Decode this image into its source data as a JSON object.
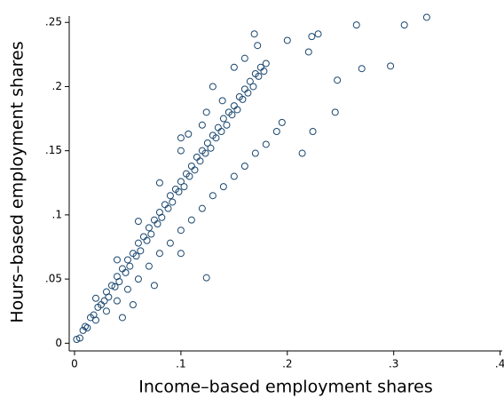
{
  "chart_data": {
    "type": "scatter",
    "x_label": "Income–based employment shares",
    "y_label": "Hours–based employment shares",
    "color": "#1a476f",
    "x": [
      0.002,
      0.005,
      0.008,
      0.01,
      0.012,
      0.015,
      0.018,
      0.02,
      0.022,
      0.025,
      0.028,
      0.03,
      0.032,
      0.035,
      0.038,
      0.04,
      0.042,
      0.045,
      0.048,
      0.05,
      0.052,
      0.055,
      0.058,
      0.06,
      0.062,
      0.065,
      0.068,
      0.07,
      0.072,
      0.075,
      0.078,
      0.08,
      0.082,
      0.085,
      0.088,
      0.09,
      0.092,
      0.095,
      0.098,
      0.1,
      0.103,
      0.105,
      0.108,
      0.11,
      0.113,
      0.115,
      0.118,
      0.12,
      0.123,
      0.125,
      0.128,
      0.13,
      0.133,
      0.135,
      0.138,
      0.14,
      0.143,
      0.145,
      0.148,
      0.15,
      0.153,
      0.155,
      0.158,
      0.16,
      0.163,
      0.165,
      0.168,
      0.17,
      0.173,
      0.175,
      0.178,
      0.18,
      0.03,
      0.04,
      0.05,
      0.06,
      0.07,
      0.08,
      0.09,
      0.1,
      0.11,
      0.12,
      0.13,
      0.14,
      0.15,
      0.16,
      0.17,
      0.18,
      0.19,
      0.195,
      0.055,
      0.075,
      0.045,
      0.1,
      0.02,
      0.04,
      0.06,
      0.08,
      0.1,
      0.12,
      0.13,
      0.15,
      0.16,
      0.1,
      0.265,
      0.31,
      0.331,
      0.297,
      0.27,
      0.247,
      0.245,
      0.124,
      0.169,
      0.172,
      0.223,
      0.229,
      0.2,
      0.22,
      0.224,
      0.214,
      0.107,
      0.124,
      0.139
    ],
    "y": [
      0.003,
      0.004,
      0.01,
      0.013,
      0.012,
      0.02,
      0.022,
      0.018,
      0.028,
      0.03,
      0.033,
      0.04,
      0.036,
      0.045,
      0.044,
      0.052,
      0.048,
      0.058,
      0.055,
      0.065,
      0.06,
      0.07,
      0.068,
      0.078,
      0.072,
      0.083,
      0.08,
      0.09,
      0.085,
      0.096,
      0.093,
      0.102,
      0.098,
      0.108,
      0.105,
      0.115,
      0.11,
      0.12,
      0.118,
      0.126,
      0.122,
      0.132,
      0.13,
      0.138,
      0.135,
      0.145,
      0.142,
      0.15,
      0.148,
      0.156,
      0.152,
      0.162,
      0.16,
      0.168,
      0.165,
      0.175,
      0.17,
      0.18,
      0.178,
      0.185,
      0.182,
      0.192,
      0.19,
      0.198,
      0.195,
      0.204,
      0.2,
      0.21,
      0.208,
      0.215,
      0.212,
      0.218,
      0.025,
      0.033,
      0.042,
      0.05,
      0.06,
      0.07,
      0.078,
      0.088,
      0.096,
      0.105,
      0.115,
      0.122,
      0.13,
      0.138,
      0.148,
      0.155,
      0.165,
      0.172,
      0.03,
      0.045,
      0.02,
      0.07,
      0.035,
      0.065,
      0.095,
      0.125,
      0.15,
      0.17,
      0.2,
      0.215,
      0.222,
      0.16,
      0.248,
      0.248,
      0.254,
      0.216,
      0.214,
      0.205,
      0.18,
      0.051,
      0.241,
      0.232,
      0.239,
      0.241,
      0.236,
      0.227,
      0.165,
      0.148,
      0.163,
      0.18,
      0.189
    ],
    "xlim": [
      -0.005,
      0.402
    ],
    "ylim": [
      -0.006,
      0.255
    ],
    "xticks": [
      0,
      {
        "value": 0.1,
        "label": ".1"
      },
      {
        "value": 0.2,
        "label": ".2"
      },
      {
        "value": 0.3,
        "label": ".3"
      },
      {
        "value": 0.4,
        "label": ".4"
      }
    ],
    "yticks": [
      0,
      {
        "value": 0.05,
        "label": ".05"
      },
      {
        "value": 0.1,
        "label": ".1"
      },
      {
        "value": 0.15,
        "label": ".15"
      },
      {
        "value": 0.2,
        "label": ".2"
      },
      {
        "value": 0.25,
        "label": ".25"
      }
    ],
    "grid": false
  }
}
